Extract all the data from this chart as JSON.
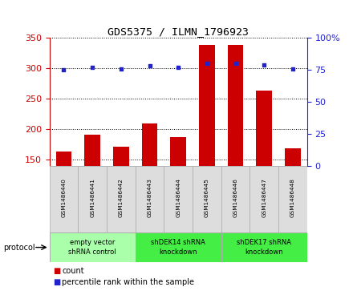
{
  "title": "GDS5375 / ILMN_1796923",
  "samples": [
    "GSM1486440",
    "GSM1486441",
    "GSM1486442",
    "GSM1486443",
    "GSM1486444",
    "GSM1486445",
    "GSM1486446",
    "GSM1486447",
    "GSM1486448"
  ],
  "counts": [
    163,
    191,
    172,
    210,
    187,
    338,
    338,
    263,
    169
  ],
  "percentiles": [
    75,
    77,
    76,
    78,
    77,
    80,
    80,
    79,
    76
  ],
  "ylim_left": [
    140,
    350
  ],
  "ylim_right": [
    0,
    100
  ],
  "yticks_left": [
    150,
    200,
    250,
    300,
    350
  ],
  "yticks_right": [
    0,
    25,
    50,
    75,
    100
  ],
  "bar_color": "#cc0000",
  "dot_color": "#2222cc",
  "grid_color": "#000000",
  "bar_bottom": 140,
  "protocols": [
    {
      "label": "empty vector\nshRNA control",
      "start": 0,
      "end": 3,
      "color": "#aaffaa"
    },
    {
      "label": "shDEK14 shRNA\nknockdown",
      "start": 3,
      "end": 6,
      "color": "#44ee44"
    },
    {
      "label": "shDEK17 shRNA\nknockdown",
      "start": 6,
      "end": 9,
      "color": "#44ee44"
    }
  ],
  "legend_items": [
    {
      "label": "count",
      "color": "#cc0000",
      "marker": "s"
    },
    {
      "label": "percentile rank within the sample",
      "color": "#2222cc",
      "marker": "s"
    }
  ],
  "protocol_label": "protocol",
  "left_axis_color": "#cc0000",
  "right_axis_color": "#2222cc",
  "sample_box_color": "#dddddd",
  "sample_box_edge": "#aaaaaa"
}
